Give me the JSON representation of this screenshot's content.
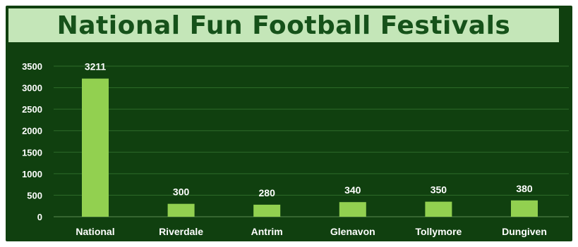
{
  "chart_data": {
    "type": "bar",
    "title": "National Fun Football Festivals",
    "categories": [
      "National",
      "Riverdale",
      "Antrim",
      "Glenavon",
      "Tollymore",
      "Dungiven"
    ],
    "values": [
      3211,
      300,
      280,
      340,
      350,
      380
    ],
    "data_labels": [
      "3211",
      "300",
      "280",
      "340",
      "350",
      "380"
    ],
    "xlabel": "",
    "ylabel": "",
    "ylim": [
      0,
      3500
    ],
    "yticks": [
      0,
      500,
      1000,
      1500,
      2000,
      2500,
      3000,
      3500
    ],
    "grid": true,
    "legend": "none",
    "colors": {
      "background": "#10400f",
      "title_band": "#c4e6b8",
      "title_text": "#16521a",
      "bar": "#92d050",
      "text": "#ffffff"
    }
  }
}
